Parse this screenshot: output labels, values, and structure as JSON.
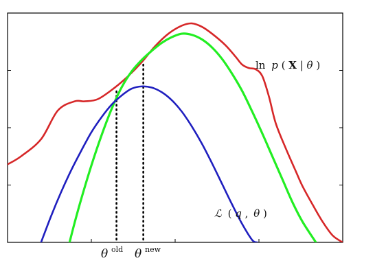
{
  "chart_data": {
    "type": "line",
    "title": "",
    "xlabel": "",
    "ylabel": "",
    "xlim": [
      0,
      1
    ],
    "ylim": [
      0,
      1
    ],
    "grid": false,
    "x_ticks": [
      0.25,
      0.5,
      0.75
    ],
    "y_ticks": [
      0.25,
      0.5,
      0.75
    ],
    "markers": [
      {
        "name": "theta-old",
        "x": 0.325,
        "label_base": "θ",
        "label_sup": "old"
      },
      {
        "name": "theta-new",
        "x": 0.405,
        "label_base": "θ",
        "label_sup": "new"
      }
    ],
    "series": [
      {
        "name": "ln p(X|θ)",
        "label_parts": {
          "prefix": "ln",
          "p": "p",
          "open": "(",
          "X": "X",
          "bar": "|",
          "theta": "θ",
          "close": ")"
        },
        "color": "#d62728",
        "x": [
          0,
          0.04,
          0.1,
          0.15,
          0.2,
          0.23,
          0.27,
          0.32,
          0.36,
          0.4,
          0.44,
          0.48,
          0.52,
          0.55,
          0.58,
          0.61,
          0.65,
          0.68,
          0.7,
          0.72,
          0.74,
          0.76,
          0.78,
          0.8,
          0.83,
          0.86,
          0.88,
          0.91,
          0.94,
          0.97,
          1.0
        ],
        "y": [
          0.34,
          0.375,
          0.45,
          0.575,
          0.615,
          0.615,
          0.625,
          0.675,
          0.725,
          0.785,
          0.855,
          0.91,
          0.945,
          0.955,
          0.94,
          0.91,
          0.86,
          0.81,
          0.775,
          0.76,
          0.755,
          0.725,
          0.635,
          0.52,
          0.41,
          0.31,
          0.245,
          0.165,
          0.09,
          0.03,
          0.0
        ]
      },
      {
        "name": "green",
        "color": "#22ee22",
        "x": [
          0.185,
          0.2,
          0.22,
          0.25,
          0.28,
          0.31,
          0.34,
          0.37,
          0.4,
          0.43,
          0.46,
          0.49,
          0.52,
          0.55,
          0.58,
          0.61,
          0.64,
          0.67,
          0.7,
          0.73,
          0.76,
          0.79,
          0.82,
          0.85,
          0.88,
          0.92
        ],
        "y": [
          0.0,
          0.085,
          0.19,
          0.335,
          0.465,
          0.58,
          0.675,
          0.745,
          0.795,
          0.835,
          0.87,
          0.895,
          0.91,
          0.905,
          0.885,
          0.85,
          0.8,
          0.735,
          0.66,
          0.57,
          0.475,
          0.375,
          0.275,
          0.175,
          0.09,
          0.0
        ]
      },
      {
        "name": "𝓛 (q, θ)",
        "label_parts": {
          "script_L": "ℒ",
          "open": "(",
          "q": "q",
          "comma": ",",
          "theta": "θ",
          "close": ")"
        },
        "color": "#1f1fbf",
        "x": [
          0.1,
          0.13,
          0.16,
          0.19,
          0.22,
          0.25,
          0.28,
          0.31,
          0.34,
          0.37,
          0.4,
          0.43,
          0.46,
          0.49,
          0.52,
          0.55,
          0.58,
          0.61,
          0.64,
          0.67,
          0.7,
          0.73,
          0.745
        ],
        "y": [
          0.0,
          0.115,
          0.22,
          0.315,
          0.4,
          0.48,
          0.545,
          0.6,
          0.64,
          0.67,
          0.68,
          0.675,
          0.655,
          0.62,
          0.57,
          0.505,
          0.43,
          0.345,
          0.255,
          0.165,
          0.08,
          0.01,
          0.0
        ]
      }
    ]
  }
}
